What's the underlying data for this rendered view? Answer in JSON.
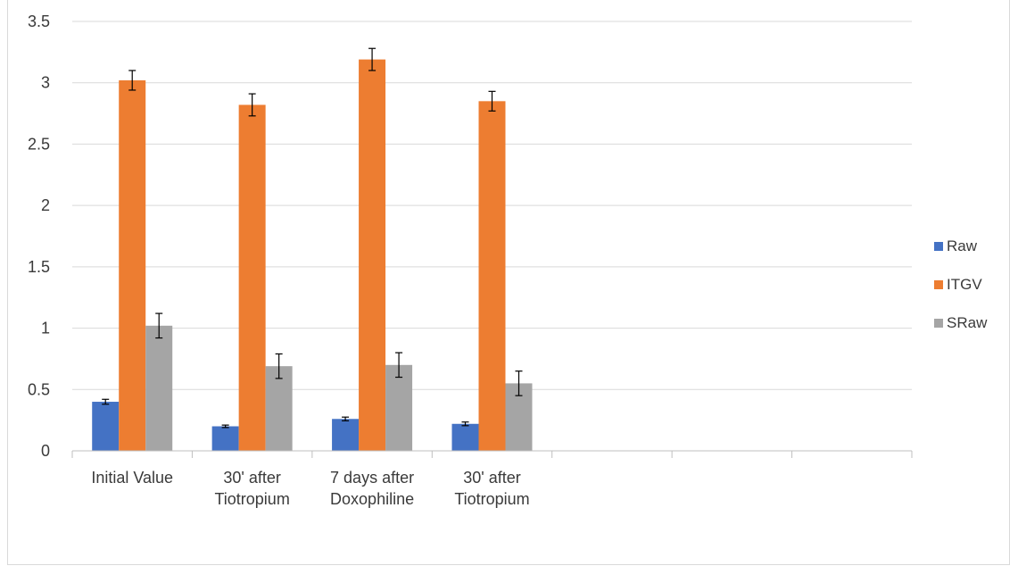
{
  "chart_data": {
    "type": "bar",
    "categories": [
      [
        "Initial Value"
      ],
      [
        "30' after",
        "Tiotropium"
      ],
      [
        "7 days after",
        "Doxophiline"
      ],
      [
        "30' after",
        "Tiotropium"
      ],
      [
        ""
      ],
      [
        ""
      ],
      [
        ""
      ]
    ],
    "series": [
      {
        "name": "Raw",
        "color": "#4472c4",
        "values": [
          0.4,
          0.2,
          0.26,
          0.22,
          null,
          null,
          null
        ],
        "errors": [
          0.02,
          0.01,
          0.015,
          0.015,
          null,
          null,
          null
        ]
      },
      {
        "name": "ITGV",
        "color": "#ed7d31",
        "values": [
          3.02,
          2.82,
          3.19,
          2.85,
          null,
          null,
          null
        ],
        "errors": [
          0.08,
          0.09,
          0.09,
          0.08,
          null,
          null,
          null
        ]
      },
      {
        "name": "SRaw",
        "color": "#a5a5a5",
        "values": [
          1.02,
          0.69,
          0.7,
          0.55,
          null,
          null,
          null
        ],
        "errors": [
          0.1,
          0.1,
          0.1,
          0.1,
          null,
          null,
          null
        ]
      }
    ],
    "yticks": [
      "0",
      "0.5",
      "1",
      "1.5",
      "2",
      "2.5",
      "3",
      "3.5"
    ],
    "ylim": [
      0,
      3.5
    ],
    "grid": true,
    "legend_position": "right"
  }
}
